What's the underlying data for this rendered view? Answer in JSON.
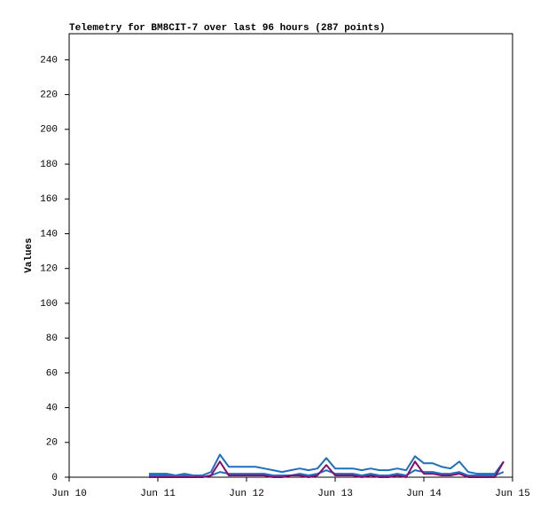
{
  "chart_data": {
    "type": "line",
    "title": "Telemetry for BM8CIT-7 over last 96 hours (287 points)",
    "y_label": "Values",
    "x": [
      10.9,
      11.0,
      11.1,
      11.2,
      11.3,
      11.4,
      11.5,
      11.6,
      11.7,
      11.8,
      11.9,
      12.0,
      12.1,
      12.2,
      12.3,
      12.4,
      12.5,
      12.6,
      12.7,
      12.8,
      12.9,
      13.0,
      13.1,
      13.2,
      13.3,
      13.4,
      13.5,
      13.6,
      13.7,
      13.8,
      13.9,
      14.0,
      14.1,
      14.2,
      14.3,
      14.4,
      14.5,
      14.6,
      14.7,
      14.8,
      14.9
    ],
    "series": [
      {
        "color": "#1f6fc0",
        "values": [
          2,
          2,
          2,
          1,
          2,
          1,
          1,
          3,
          13,
          6,
          6,
          6,
          6,
          5,
          4,
          3,
          4,
          5,
          4,
          5,
          11,
          5,
          5,
          5,
          4,
          5,
          4,
          4,
          5,
          4,
          12,
          8,
          8,
          6,
          5,
          9,
          3,
          2,
          2,
          2,
          9
        ]
      },
      {
        "color": "#1f6fc0",
        "values": [
          1,
          1,
          1,
          0,
          1,
          0,
          0,
          1,
          3,
          2,
          2,
          2,
          2,
          2,
          1,
          1,
          1,
          2,
          1,
          2,
          4,
          2,
          2,
          2,
          1,
          2,
          1,
          1,
          2,
          1,
          4,
          3,
          3,
          2,
          2,
          3,
          1,
          1,
          1,
          1,
          3
        ]
      },
      {
        "color": "#8b0a6e",
        "values": [
          0,
          0,
          0,
          0,
          0,
          0,
          0,
          1,
          9,
          1,
          1,
          1,
          1,
          1,
          0,
          0,
          1,
          1,
          0,
          1,
          7,
          1,
          1,
          1,
          0,
          1,
          0,
          0,
          1,
          0,
          9,
          2,
          2,
          1,
          1,
          2,
          0,
          0,
          0,
          0,
          9
        ]
      }
    ],
    "xlim": [
      10,
      15
    ],
    "xticks": [
      {
        "value": 10,
        "label": "Jun 10"
      },
      {
        "value": 11,
        "label": "Jun 11"
      },
      {
        "value": 12,
        "label": "Jun 12"
      },
      {
        "value": 13,
        "label": "Jun 13"
      },
      {
        "value": 14,
        "label": "Jun 14"
      },
      {
        "value": 15,
        "label": "Jun 15"
      }
    ],
    "ylim": [
      0,
      255
    ],
    "yticks": [
      0,
      20,
      40,
      60,
      80,
      100,
      120,
      140,
      160,
      180,
      200,
      220,
      240
    ]
  }
}
